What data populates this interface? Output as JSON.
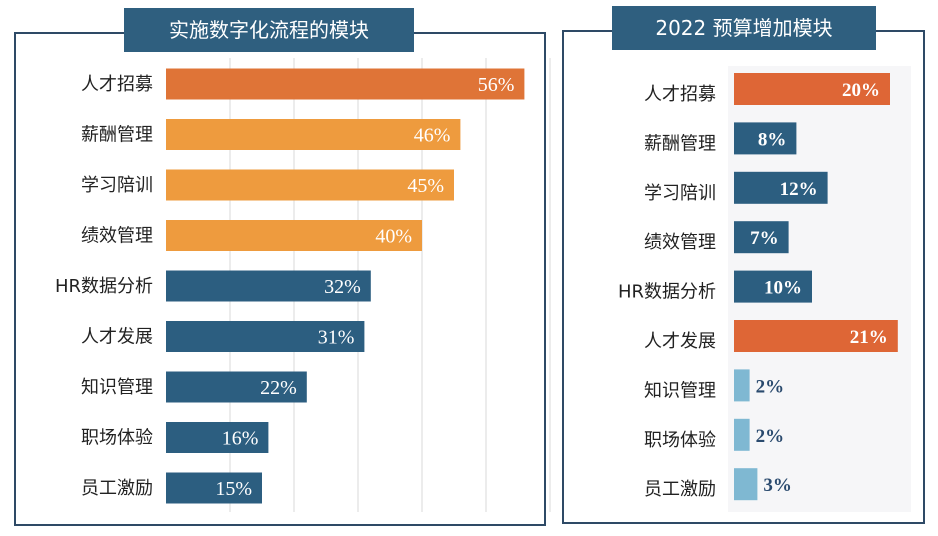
{
  "colors": {
    "orange_strong": "#df7437",
    "orange_light": "#ee9b3e",
    "blue_dark": "#2c5e80",
    "blue_light": "#7fb8d2",
    "red_orange": "#de6636",
    "frame": "#2e4a66",
    "title_bg": "#2f5f7f",
    "grid": "#d9d9d9"
  },
  "chart_data": [
    {
      "type": "bar",
      "orientation": "horizontal",
      "title": "实施数字化流程的模块",
      "categories": [
        "人才招募",
        "薪酬管理",
        "学习陪训",
        "绩效管理",
        "HR数据分析",
        "人才发展",
        "知识管理",
        "职场体验",
        "员工激励"
      ],
      "values": [
        56,
        46,
        45,
        40,
        32,
        31,
        22,
        16,
        15
      ],
      "value_labels": [
        "56%",
        "46%",
        "45%",
        "40%",
        "32%",
        "31%",
        "22%",
        "16%",
        "15%"
      ],
      "bar_colors": [
        "#df7437",
        "#ee9b3e",
        "#ee9b3e",
        "#ee9b3e",
        "#2c5e80",
        "#2c5e80",
        "#2c5e80",
        "#2c5e80",
        "#2c5e80"
      ],
      "xlim": [
        0,
        60
      ],
      "grid": true
    },
    {
      "type": "bar",
      "orientation": "horizontal",
      "title": "2022 预算增加模块",
      "categories": [
        "人才招募",
        "薪酬管理",
        "学习陪训",
        "绩效管理",
        "HR数据分析",
        "人才发展",
        "知识管理",
        "职场体验",
        "员工激励"
      ],
      "values": [
        20,
        8,
        12,
        7,
        10,
        21,
        2,
        2,
        3
      ],
      "value_labels": [
        "20%",
        "8%",
        "12%",
        "7%",
        "10%",
        "21%",
        "2%",
        "2%",
        "3%"
      ],
      "bar_colors": [
        "#de6636",
        "#2c5e80",
        "#2c5e80",
        "#2c5e80",
        "#2c5e80",
        "#de6636",
        "#7fb8d2",
        "#7fb8d2",
        "#7fb8d2"
      ],
      "xlim": [
        0,
        25
      ],
      "grid": false
    }
  ]
}
